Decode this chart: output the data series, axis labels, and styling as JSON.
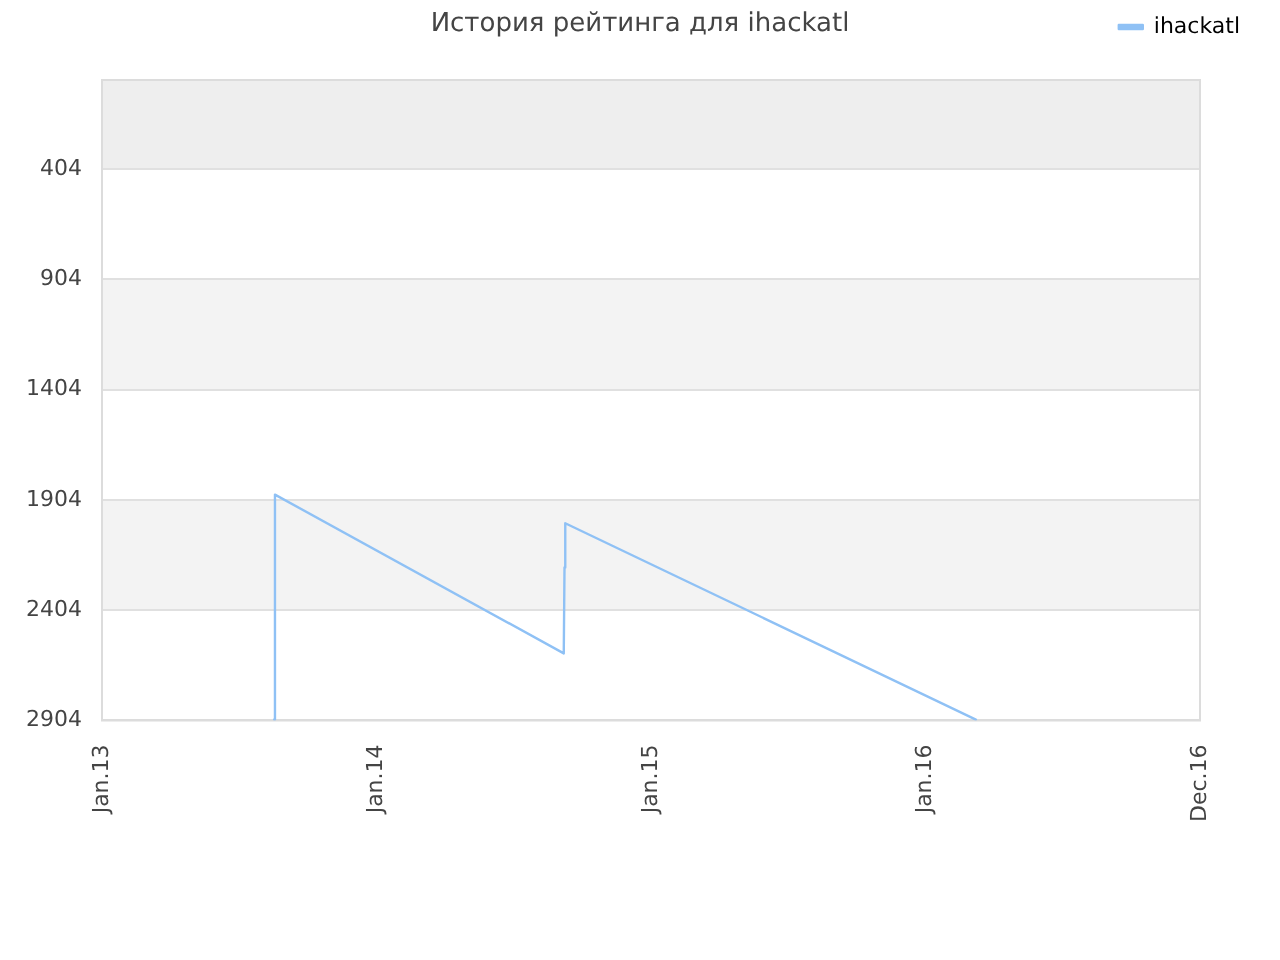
{
  "chart_data": {
    "type": "line",
    "title": "История рейтинга для ihackatl",
    "x": [
      "2013-08-18",
      "2013-08-19",
      "2014-09-07",
      "2014-09-08",
      "2014-09-09",
      "2016-03-08"
    ],
    "series": [
      {
        "name": "ihackatl",
        "color": "#8fc1f5",
        "values": [
          2900,
          1880,
          2600,
          2210,
          2010,
          2900
        ]
      }
    ],
    "xlim": [
      "2013-01-01",
      "2016-12-31"
    ],
    "xticks": [
      {
        "value": "2013-01-01",
        "label": "Jan.13"
      },
      {
        "value": "2014-01-01",
        "label": "Jan.14"
      },
      {
        "value": "2015-01-01",
        "label": "Jan.15"
      },
      {
        "value": "2016-01-01",
        "label": "Jan.16"
      },
      {
        "value": "2016-12-31",
        "label": "Dec.16"
      }
    ],
    "ylim": [
      2904,
      0
    ],
    "yticks": [
      404,
      904,
      1404,
      1904,
      2404,
      2904
    ],
    "bands": [
      {
        "axis": "y",
        "from": 0,
        "to": 404,
        "color": "#eeeeee"
      },
      {
        "axis": "y",
        "from": 904,
        "to": 1404,
        "color": "#f3f3f3"
      },
      {
        "axis": "y",
        "from": 1904,
        "to": 2404,
        "color": "#f3f3f3"
      }
    ],
    "grid": "y",
    "legend": "top right",
    "marker": "none"
  }
}
